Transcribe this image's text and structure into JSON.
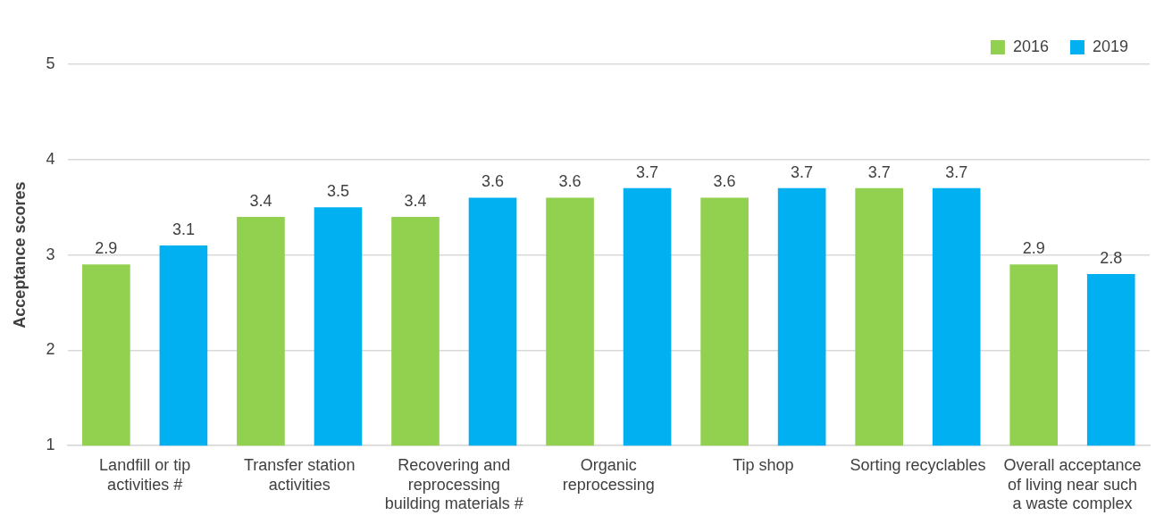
{
  "chart_data": {
    "type": "bar",
    "ylabel": "Acceptance scores",
    "categories": [
      "Landfill or tip activities #",
      "Transfer station activities",
      "Recovering and reprocessing building materials #",
      "Organic reprocessing",
      "Tip shop",
      "Sorting recyclables",
      "Overall acceptance of living near such a waste complex"
    ],
    "series": [
      {
        "name": "2016",
        "color": "#92d050",
        "values": [
          2.9,
          3.4,
          3.4,
          3.6,
          3.6,
          3.7,
          2.9
        ]
      },
      {
        "name": "2019",
        "color": "#00b0f0",
        "values": [
          3.1,
          3.5,
          3.6,
          3.7,
          3.7,
          3.7,
          2.8
        ]
      }
    ],
    "ylim": [
      1,
      5
    ],
    "yticks": [
      1,
      2,
      3,
      4,
      5
    ],
    "grid": "y",
    "legend": "top right",
    "data_labels": true
  }
}
